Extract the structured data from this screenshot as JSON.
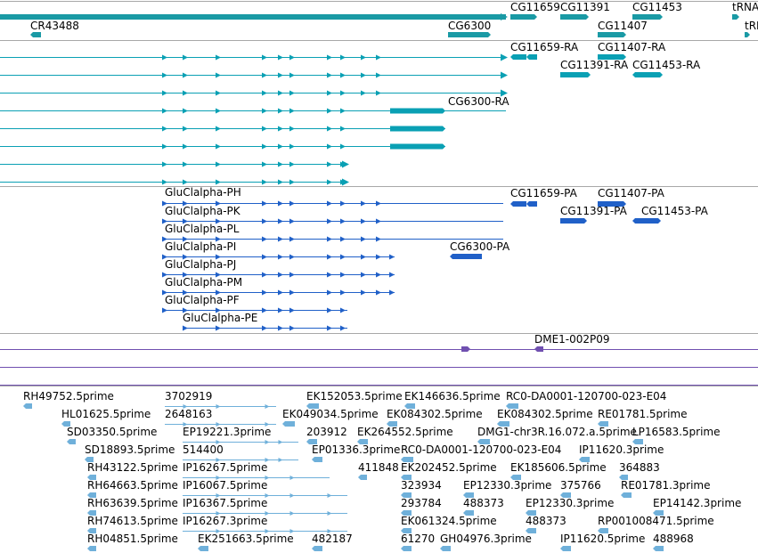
{
  "colors": {
    "gene": "#1a9aa5",
    "transcript": "#0aa0b4",
    "protein": "#2060c8",
    "aberration": "#7050b0",
    "est": "#6fb0da",
    "divider": "#a8a8a8"
  },
  "tracks": {
    "genes": {
      "labels": [
        {
          "key": "cr43488",
          "text": "CR43488"
        },
        {
          "key": "cg11659",
          "text": "CG11659"
        },
        {
          "key": "cg11391",
          "text": "CG11391"
        },
        {
          "key": "cg11453",
          "text": "CG11453"
        },
        {
          "key": "trna",
          "text": "tRNA"
        },
        {
          "key": "cg6300",
          "text": "CG6300"
        },
        {
          "key": "cg11407",
          "text": "CG11407"
        },
        {
          "key": "trn2",
          "text": "tRN"
        }
      ]
    },
    "transcripts": {
      "labels": [
        {
          "key": "cg11659-ra",
          "text": "CG11659-RA"
        },
        {
          "key": "cg11407-ra",
          "text": "CG11407-RA"
        },
        {
          "key": "cg11391-ra",
          "text": "CG11391-RA"
        },
        {
          "key": "cg11453-ra",
          "text": "CG11453-RA"
        },
        {
          "key": "cg6300-ra",
          "text": "CG6300-RA"
        }
      ]
    },
    "proteins": {
      "labels": [
        {
          "key": "gluclalpha-ph",
          "text": "GluClalpha-PH"
        },
        {
          "key": "cg11659-pa",
          "text": "CG11659-PA"
        },
        {
          "key": "cg11407-pa",
          "text": "CG11407-PA"
        },
        {
          "key": "gluclalpha-pk",
          "text": "GluClalpha-PK"
        },
        {
          "key": "cg11391-pa",
          "text": "CG11391-PA"
        },
        {
          "key": "cg11453-pa",
          "text": "CG11453-PA"
        },
        {
          "key": "gluclalpha-pl",
          "text": "GluClalpha-PL"
        },
        {
          "key": "gluclalpha-pi",
          "text": "GluClalpha-PI"
        },
        {
          "key": "cg6300-pa",
          "text": "CG6300-PA"
        },
        {
          "key": "gluclalpha-pj",
          "text": "GluClalpha-PJ"
        },
        {
          "key": "gluclalpha-pm",
          "text": "GluClalpha-PM"
        },
        {
          "key": "gluclalpha-pf",
          "text": "GluClalpha-PF"
        },
        {
          "key": "gluclalpha-pe",
          "text": "GluClalpha-PE"
        }
      ]
    },
    "aberrations": {
      "labels": [
        {
          "key": "dme1-002p09",
          "text": "DME1-002P09"
        }
      ]
    },
    "ests": {
      "labels": [
        {
          "key": "rh49752",
          "text": "RH49752.5prime"
        },
        {
          "key": "n3702919",
          "text": "3702919"
        },
        {
          "key": "ek152053",
          "text": "EK152053.5prime"
        },
        {
          "key": "ek146636",
          "text": "EK146636.5prime"
        },
        {
          "key": "rc0-da0001-1",
          "text": "RC0-DA0001-120700-023-E04"
        },
        {
          "key": "hl01625",
          "text": "HL01625.5prime"
        },
        {
          "key": "n2648163",
          "text": "2648163"
        },
        {
          "key": "ek049034",
          "text": "EK049034.5prime"
        },
        {
          "key": "ek084302a",
          "text": "EK084302.5prime"
        },
        {
          "key": "ek084302b",
          "text": "EK084302.5prime"
        },
        {
          "key": "re01781-5",
          "text": "RE01781.5prime"
        },
        {
          "key": "sd03350",
          "text": "SD03350.5prime"
        },
        {
          "key": "ep19221",
          "text": "EP19221.3prime"
        },
        {
          "key": "n203912",
          "text": "203912"
        },
        {
          "key": "ek264552",
          "text": "EK264552.5prime"
        },
        {
          "key": "dmg1",
          "text": "DMG1-chr3R.16.072.a.5prime"
        },
        {
          "key": "lp16583",
          "text": "LP16583.5prime"
        },
        {
          "key": "sd18893",
          "text": "SD18893.5prime"
        },
        {
          "key": "n514400",
          "text": "514400"
        },
        {
          "key": "ep01336",
          "text": "EP01336.3prime"
        },
        {
          "key": "rc0-da0001-2",
          "text": "RC0-DA0001-120700-023-E04"
        },
        {
          "key": "ip11620-3",
          "text": "IP11620.3prime"
        },
        {
          "key": "rh43122",
          "text": "RH43122.5prime"
        },
        {
          "key": "ip16267-5",
          "text": "IP16267.5prime"
        },
        {
          "key": "n411848",
          "text": "411848"
        },
        {
          "key": "ek202452",
          "text": "EK202452.5prime"
        },
        {
          "key": "ek185606",
          "text": "EK185606.5prime"
        },
        {
          "key": "n364883",
          "text": "364883"
        },
        {
          "key": "rh64663",
          "text": "RH64663.5prime"
        },
        {
          "key": "ip16067",
          "text": "IP16067.5prime"
        },
        {
          "key": "n323934",
          "text": "323934"
        },
        {
          "key": "ep12330-5",
          "text": "EP12330.3prime"
        },
        {
          "key": "n375766",
          "text": "375766"
        },
        {
          "key": "re01781-3",
          "text": "RE01781.3prime"
        },
        {
          "key": "rh63639",
          "text": "RH63639.5prime"
        },
        {
          "key": "ip16367",
          "text": "IP16367.5prime"
        },
        {
          "key": "n293784",
          "text": "293784"
        },
        {
          "key": "n488373a",
          "text": "488373"
        },
        {
          "key": "ep12330-3",
          "text": "EP12330.3prime"
        },
        {
          "key": "ep14142",
          "text": "EP14142.3prime"
        },
        {
          "key": "rh74613",
          "text": "RH74613.5prime"
        },
        {
          "key": "ip16267-3",
          "text": "IP16267.3prime"
        },
        {
          "key": "ek061324",
          "text": "EK061324.5prime"
        },
        {
          "key": "n488373b",
          "text": "488373"
        },
        {
          "key": "rp001008471",
          "text": "RP001008471.5prime"
        },
        {
          "key": "rh04851",
          "text": "RH04851.5prime"
        },
        {
          "key": "ek251663",
          "text": "EK251663.5prime"
        },
        {
          "key": "n482187",
          "text": "482187"
        },
        {
          "key": "n61270",
          "text": "61270"
        },
        {
          "key": "gh04976",
          "text": "GH04976.3prime"
        },
        {
          "key": "ip11620-5",
          "text": "IP11620.5prime"
        },
        {
          "key": "n488968",
          "text": "488968"
        }
      ]
    }
  }
}
